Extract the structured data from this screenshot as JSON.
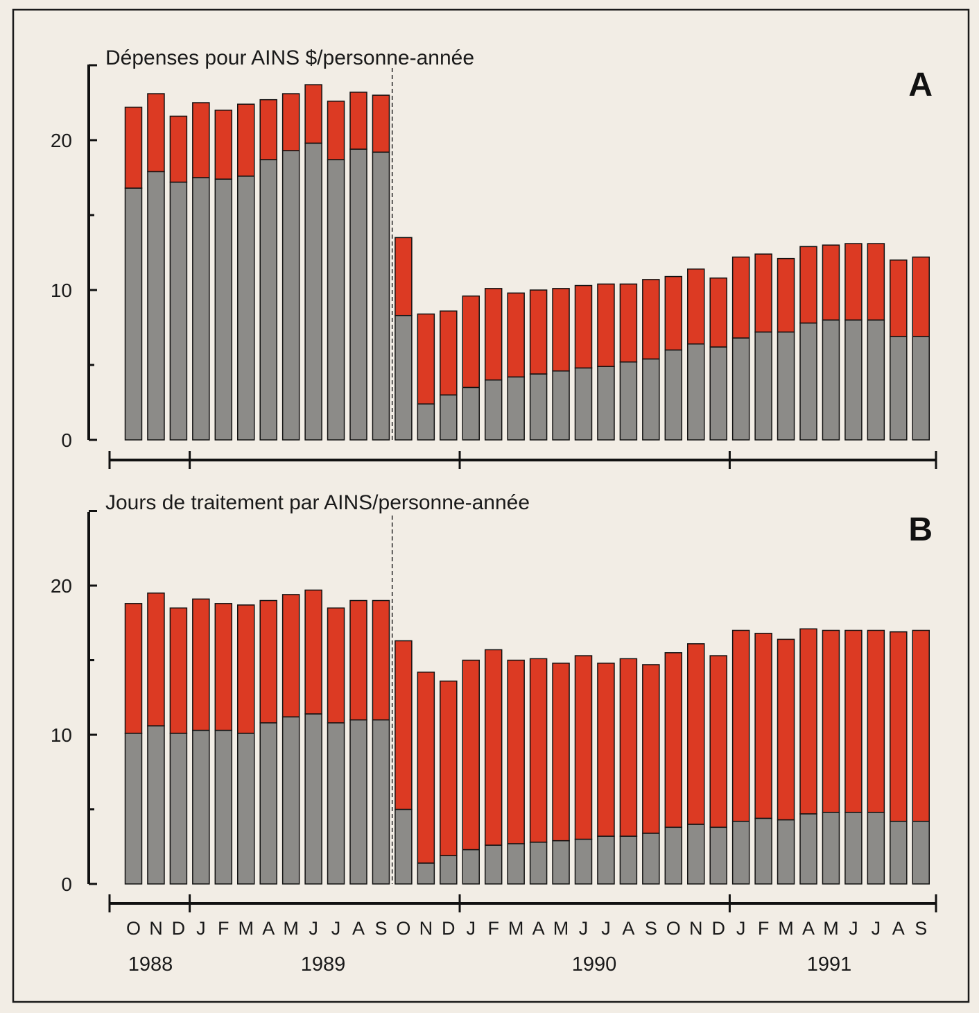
{
  "colors": {
    "background": "#f2ede5",
    "gray": "#8c8b88",
    "red": "#dc3a23",
    "axis": "#111111"
  },
  "shared_axis": {
    "months": [
      "O",
      "N",
      "D",
      "J",
      "F",
      "M",
      "A",
      "M",
      "J",
      "J",
      "A",
      "S",
      "O",
      "N",
      "D",
      "J",
      "F",
      "M",
      "A",
      "M",
      "J",
      "J",
      "A",
      "S",
      "O",
      "N",
      "D",
      "J",
      "F",
      "M",
      "A",
      "M",
      "J",
      "J",
      "A",
      "S"
    ],
    "years": [
      "1988",
      "1989",
      "1990",
      "1991"
    ]
  },
  "chart_data": [
    {
      "type": "bar",
      "stacked": true,
      "panel_label": "A",
      "title": "Dépenses pour AINS $/personne-année",
      "xlabel": "",
      "ylabel": "",
      "ylim": [
        0,
        25
      ],
      "yticks": [
        0,
        10,
        20
      ],
      "grid": false,
      "legend": "none",
      "divider_after_index": 11,
      "categories": [
        "O",
        "N",
        "D",
        "J",
        "F",
        "M",
        "A",
        "M",
        "J",
        "J",
        "A",
        "S",
        "O",
        "N",
        "D",
        "J",
        "F",
        "M",
        "A",
        "M",
        "J",
        "J",
        "A",
        "S",
        "O",
        "N",
        "D",
        "J",
        "F",
        "M",
        "A",
        "M",
        "J",
        "J",
        "A",
        "S"
      ],
      "series": [
        {
          "color": "#8c8b88",
          "values": [
            16.8,
            17.9,
            17.2,
            17.5,
            17.4,
            17.6,
            18.7,
            19.3,
            19.8,
            18.7,
            19.4,
            19.2,
            8.3,
            2.4,
            3.0,
            3.5,
            4.0,
            4.2,
            4.4,
            4.6,
            4.8,
            4.9,
            5.2,
            5.4,
            6.0,
            6.4,
            6.2,
            6.8,
            7.2,
            7.2,
            7.8,
            8.0,
            8.0,
            8.0,
            6.9,
            6.9
          ]
        },
        {
          "color": "#dc3a23",
          "values": [
            5.4,
            5.2,
            4.4,
            5.0,
            4.6,
            4.8,
            4.0,
            3.8,
            3.9,
            3.9,
            3.8,
            3.8,
            5.2,
            6.0,
            5.6,
            6.1,
            6.1,
            5.6,
            5.6,
            5.5,
            5.5,
            5.5,
            5.2,
            5.3,
            4.9,
            5.0,
            4.6,
            5.4,
            5.2,
            4.9,
            5.1,
            5.0,
            5.1,
            5.1,
            5.1,
            5.3
          ]
        }
      ]
    },
    {
      "type": "bar",
      "stacked": true,
      "panel_label": "B",
      "title": "Jours de traitement par AINS/personne-année",
      "xlabel": "",
      "ylabel": "",
      "ylim": [
        0,
        25
      ],
      "yticks": [
        0,
        10,
        20
      ],
      "grid": false,
      "legend": "none",
      "divider_after_index": 11,
      "categories": [
        "O",
        "N",
        "D",
        "J",
        "F",
        "M",
        "A",
        "M",
        "J",
        "J",
        "A",
        "S",
        "O",
        "N",
        "D",
        "J",
        "F",
        "M",
        "A",
        "M",
        "J",
        "J",
        "A",
        "S",
        "O",
        "N",
        "D",
        "J",
        "F",
        "M",
        "A",
        "M",
        "J",
        "J",
        "A",
        "S"
      ],
      "series": [
        {
          "color": "#8c8b88",
          "values": [
            10.1,
            10.6,
            10.1,
            10.3,
            10.3,
            10.1,
            10.8,
            11.2,
            11.4,
            10.8,
            11.0,
            11.0,
            5.0,
            1.4,
            1.9,
            2.3,
            2.6,
            2.7,
            2.8,
            2.9,
            3.0,
            3.2,
            3.2,
            3.4,
            3.8,
            4.0,
            3.8,
            4.2,
            4.4,
            4.3,
            4.7,
            4.8,
            4.8,
            4.8,
            4.2,
            4.2
          ]
        },
        {
          "color": "#dc3a23",
          "values": [
            8.7,
            8.9,
            8.4,
            8.8,
            8.5,
            8.6,
            8.2,
            8.2,
            8.3,
            7.7,
            8.0,
            8.0,
            11.3,
            12.8,
            11.7,
            12.7,
            13.1,
            12.3,
            12.3,
            11.9,
            12.3,
            11.6,
            11.9,
            11.3,
            11.7,
            12.1,
            11.5,
            12.8,
            12.4,
            12.1,
            12.4,
            12.2,
            12.2,
            12.2,
            12.7,
            12.8
          ]
        }
      ]
    }
  ]
}
